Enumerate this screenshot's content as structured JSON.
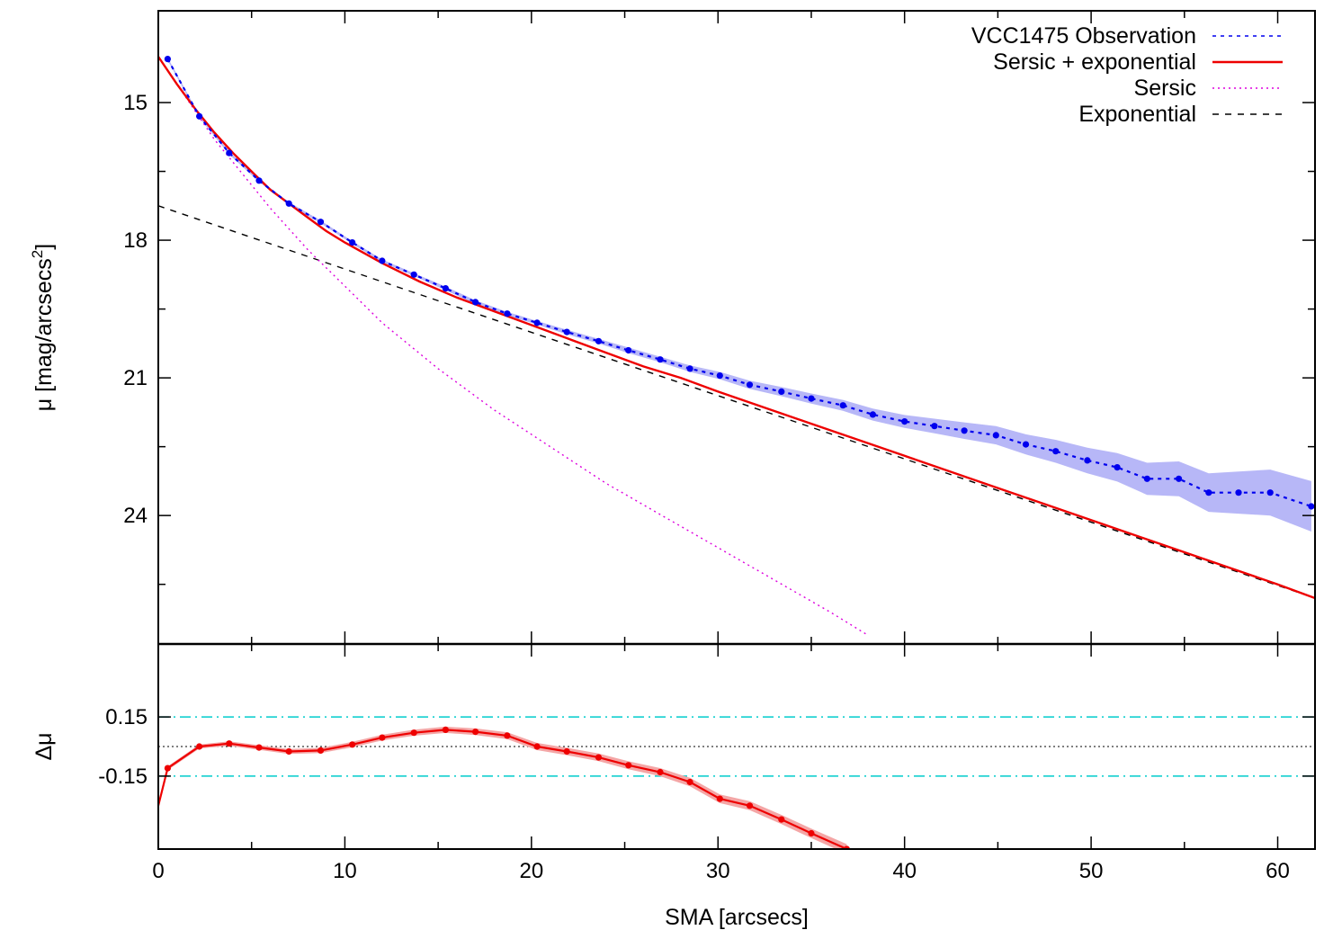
{
  "chart_data": [
    {
      "panel": "top",
      "type": "line",
      "ylabel": "μ [mag/arcsecs²]",
      "ylabel_parts": {
        "main": "μ [mag/arcsecs",
        "sup": "2",
        "end": "]"
      },
      "xlim": [
        0,
        62
      ],
      "ylim": [
        13,
        26.8
      ],
      "y_inverted": true,
      "y_ticks": [
        15,
        18,
        21,
        24
      ],
      "y_minor_ticks": [
        16.5,
        19.5,
        22.5,
        25.5
      ],
      "legend_position": "top-right",
      "series": [
        {
          "name": "VCC1475 Observation",
          "style": "dotted-with-points",
          "color": "#0000ee",
          "band_color": "#aaaaf6",
          "x": [
            0.5,
            2.2,
            3.8,
            5.4,
            7.0,
            8.7,
            10.4,
            12.0,
            13.7,
            15.4,
            17.0,
            18.7,
            20.3,
            21.9,
            23.6,
            25.2,
            26.9,
            28.5,
            30.1,
            31.7,
            33.4,
            35.0,
            36.7,
            38.3,
            40.0,
            41.6,
            43.2,
            44.9,
            46.5,
            48.1,
            49.8,
            51.4,
            53.0,
            54.7,
            56.3,
            57.9,
            59.6,
            61.8
          ],
          "y": [
            14.05,
            15.3,
            16.1,
            16.7,
            17.2,
            17.6,
            18.05,
            18.45,
            18.75,
            19.05,
            19.35,
            19.6,
            19.8,
            20.0,
            20.2,
            20.4,
            20.6,
            20.8,
            20.95,
            21.15,
            21.3,
            21.45,
            21.6,
            21.8,
            21.95,
            22.05,
            22.15,
            22.25,
            22.45,
            22.6,
            22.8,
            22.95,
            23.2,
            23.2,
            23.5,
            23.5,
            23.5,
            23.8
          ],
          "err": [
            0.03,
            0.03,
            0.03,
            0.03,
            0.03,
            0.03,
            0.03,
            0.03,
            0.03,
            0.04,
            0.04,
            0.04,
            0.04,
            0.05,
            0.05,
            0.06,
            0.06,
            0.07,
            0.08,
            0.09,
            0.1,
            0.11,
            0.12,
            0.13,
            0.14,
            0.16,
            0.18,
            0.2,
            0.22,
            0.25,
            0.28,
            0.31,
            0.35,
            0.38,
            0.42,
            0.46,
            0.5,
            0.55
          ]
        },
        {
          "name": "Sersic + exponential",
          "style": "solid",
          "color": "#ee0000",
          "x": [
            0,
            1,
            2,
            3,
            4,
            5,
            6,
            7,
            8,
            9,
            10,
            12,
            14,
            16,
            18,
            20,
            22,
            24,
            26,
            28,
            30,
            35,
            40,
            45,
            50,
            55,
            60,
            62
          ],
          "y": [
            14.0,
            14.6,
            15.15,
            15.65,
            16.1,
            16.5,
            16.9,
            17.2,
            17.5,
            17.8,
            18.05,
            18.5,
            18.9,
            19.25,
            19.55,
            19.85,
            20.15,
            20.45,
            20.75,
            21.0,
            21.3,
            22.0,
            22.7,
            23.4,
            24.1,
            24.8,
            25.5,
            25.8
          ]
        },
        {
          "name": "Sersic",
          "style": "dotted",
          "color": "#dd00dd",
          "x": [
            0,
            1,
            2,
            3,
            4,
            6,
            8,
            10,
            12,
            15,
            18,
            21,
            24,
            27,
            30,
            33,
            36,
            38
          ],
          "y": [
            14.0,
            14.6,
            15.2,
            15.8,
            16.3,
            17.3,
            18.2,
            19.0,
            19.8,
            20.8,
            21.7,
            22.5,
            23.3,
            24.0,
            24.7,
            25.4,
            26.1,
            26.6
          ]
        },
        {
          "name": "Exponential",
          "style": "dashed",
          "color": "#000000",
          "x": [
            0,
            62
          ],
          "y": [
            17.25,
            25.8
          ]
        }
      ]
    },
    {
      "panel": "bottom",
      "type": "line",
      "xlabel": "SMA [arcsecs]",
      "ylabel": "Δμ",
      "xlim": [
        0,
        62
      ],
      "ylim": [
        -0.52,
        0.52
      ],
      "y_inverted": true,
      "x_ticks": [
        0,
        10,
        20,
        30,
        40,
        50,
        60
      ],
      "x_minor_ticks": [
        5,
        15,
        25,
        35,
        45,
        55
      ],
      "y_ticks": [
        0.15,
        -0.15
      ],
      "reference_lines": [
        {
          "y": 0.15,
          "style": "dash-dot",
          "color": "#00cccc"
        },
        {
          "y": -0.15,
          "style": "dash-dot",
          "color": "#00cccc"
        },
        {
          "y": 0.0,
          "style": "dotted",
          "color": "#000000"
        }
      ],
      "series": [
        {
          "style": "solid-with-points",
          "color": "#ee0000",
          "x": [
            0.0,
            0.5,
            2.2,
            3.8,
            5.4,
            7.0,
            8.7,
            10.4,
            12.0,
            13.7,
            15.4,
            17.0,
            18.7,
            20.3,
            21.9,
            23.6,
            25.2,
            26.9,
            28.5,
            30.1,
            31.7,
            33.4,
            35.0,
            36.9
          ],
          "y": [
            -0.3,
            -0.11,
            0.0,
            0.015,
            -0.005,
            -0.025,
            -0.02,
            0.01,
            0.045,
            0.07,
            0.085,
            0.075,
            0.055,
            0.0,
            -0.025,
            -0.055,
            -0.095,
            -0.13,
            -0.18,
            -0.265,
            -0.3,
            -0.37,
            -0.44,
            -0.52
          ]
        }
      ]
    }
  ]
}
